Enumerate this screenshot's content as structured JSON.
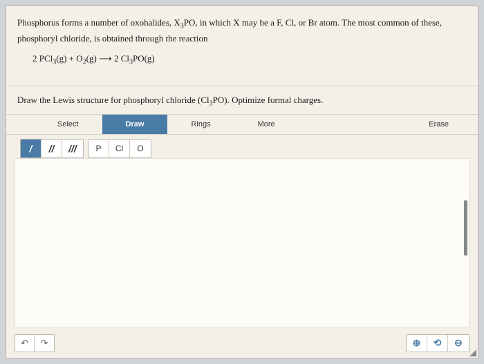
{
  "question": {
    "line1_pre": "Phosphorus forms a number of oxohalides, X",
    "line1_sub1": "3",
    "line1_mid": "PO, in which X may be a F, Cl, or Br atom. The most common of these,",
    "line2": "phosphoryl chloride, is obtained through the reaction"
  },
  "equation": {
    "part1": "2 PCl",
    "sub1": "3",
    "part2": "(g) + O",
    "sub2": "2",
    "part3": "(g) ⟶ 2 Cl",
    "sub3": "3",
    "part4": "PO(g)"
  },
  "instruction": {
    "pre": "Draw the Lewis structure for phosphoryl chloride (Cl",
    "sub": "3",
    "post": "PO). Optimize formal charges."
  },
  "tabs": {
    "select": "Select",
    "draw": "Draw",
    "rings": "Rings",
    "more": "More",
    "erase": "Erase"
  },
  "bond_tools": {
    "single": "/",
    "double": "//",
    "triple": "///"
  },
  "atom_tools": {
    "p": "P",
    "cl": "Cl",
    "o": "O"
  },
  "icons": {
    "undo": "↶",
    "redo": "↷",
    "zoom_in": "⊕",
    "zoom_reset": "⟲",
    "zoom_out": "⊖"
  },
  "colors": {
    "accent": "#4a7ba6",
    "page_bg": "#f4f0e8",
    "outer_bg": "#d0d4d6"
  }
}
